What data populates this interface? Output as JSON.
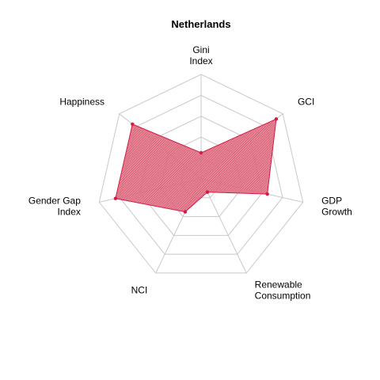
{
  "chart_data": {
    "type": "radar",
    "title": "Netherlands",
    "axes": [
      {
        "label_lines": [
          "Gini",
          "Index"
        ],
        "value": 0.25
      },
      {
        "label_lines": [
          "GCI"
        ],
        "value": 0.92
      },
      {
        "label_lines": [
          "GDP",
          "Growth"
        ],
        "value": 0.65
      },
      {
        "label_lines": [
          "Renewable",
          "Consumption"
        ],
        "value": 0.14
      },
      {
        "label_lines": [
          "NCI"
        ],
        "value": 0.35
      },
      {
        "label_lines": [
          "Gender Gap",
          "Index"
        ],
        "value": 0.84
      },
      {
        "label_lines": [
          "Happiness"
        ],
        "value": 0.84
      }
    ],
    "range": [
      0,
      1
    ],
    "grid_levels": 5,
    "grid": true,
    "legend": "none",
    "colors": {
      "grid": "#c8c8c8",
      "fill": "#d94a63",
      "stroke": "#d41a45",
      "point": "#d41a45"
    }
  }
}
